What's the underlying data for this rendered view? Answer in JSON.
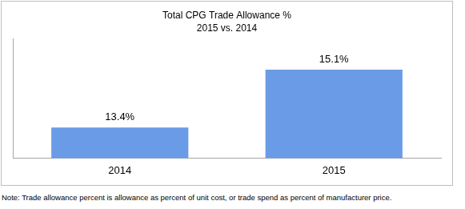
{
  "chart_data": {
    "type": "bar",
    "title": "Total CPG Trade Allowance %",
    "subtitle": "2015 vs. 2014",
    "categories": [
      "2014",
      "2015"
    ],
    "values": [
      13.4,
      15.1
    ],
    "value_labels": [
      "13.4%",
      "15.1%"
    ],
    "data_labels": true,
    "color": "#6a9be6",
    "ylim": [
      12.5,
      16
    ],
    "grid": false,
    "tick_labels": "x",
    "annotations": [
      "Note: Trade allowance percent is allowance as percent of unit cost, or trade spend as percent of manufacturer price."
    ]
  }
}
